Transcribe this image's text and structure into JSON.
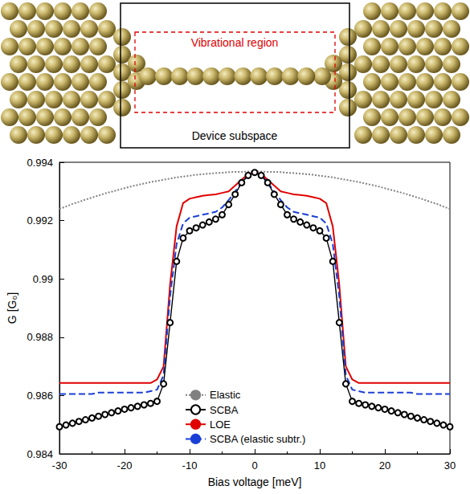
{
  "illustration": {
    "vibrational_region_label": "Vibrational region",
    "device_subspace_label": "Device subspace"
  },
  "chart_data": {
    "type": "line",
    "x_label": "Bias voltage [meV]",
    "y_label": "G [G₀]",
    "xlim": [
      -30,
      30
    ],
    "xticks": [
      -30,
      -20,
      -10,
      0,
      10,
      20,
      30
    ],
    "ylim": [
      0.984,
      0.994
    ],
    "yticks": [
      0.984,
      0.986,
      0.988,
      0.99,
      0.992,
      0.994
    ],
    "grid": false,
    "legend": "lower center",
    "x": [
      -30,
      -29,
      -28,
      -27,
      -26,
      -25,
      -24,
      -23,
      -22,
      -21,
      -20,
      -19,
      -18,
      -17,
      -16,
      -15,
      -14,
      -13,
      -12,
      -11,
      -10,
      -9,
      -8,
      -7,
      -6,
      -5,
      -4,
      -3,
      -2,
      -1,
      0,
      1,
      2,
      3,
      4,
      5,
      6,
      7,
      8,
      9,
      10,
      11,
      12,
      13,
      14,
      15,
      16,
      17,
      18,
      19,
      20,
      21,
      22,
      23,
      24,
      25,
      26,
      27,
      28,
      29,
      30
    ],
    "series": [
      {
        "name": "Elastic",
        "color": "#808080",
        "line_style": "dotted",
        "marker": "none",
        "values": [
          0.9924,
          0.99248,
          0.99257,
          0.99264,
          0.99272,
          0.99279,
          0.99286,
          0.99293,
          0.99299,
          0.99305,
          0.99311,
          0.99317,
          0.99322,
          0.99327,
          0.99332,
          0.99336,
          0.9934,
          0.99344,
          0.99348,
          0.99351,
          0.99354,
          0.99357,
          0.99359,
          0.99361,
          0.99363,
          0.99364,
          0.99366,
          0.99367,
          0.99367,
          0.99368,
          0.99368,
          0.99368,
          0.99367,
          0.99367,
          0.99366,
          0.99364,
          0.99363,
          0.99361,
          0.99359,
          0.99357,
          0.99354,
          0.99351,
          0.99348,
          0.99344,
          0.9934,
          0.99336,
          0.99332,
          0.99327,
          0.99322,
          0.99317,
          0.99311,
          0.99305,
          0.99299,
          0.99293,
          0.99286,
          0.99279,
          0.99272,
          0.99264,
          0.99257,
          0.99248,
          0.9924
        ]
      },
      {
        "name": "SCBA",
        "color": "#000000",
        "line_style": "solid",
        "marker": "open_circle",
        "values": [
          0.98493,
          0.98499,
          0.98505,
          0.98511,
          0.98517,
          0.98523,
          0.98529,
          0.98535,
          0.98541,
          0.98547,
          0.98553,
          0.98558,
          0.98563,
          0.98568,
          0.98573,
          0.9858,
          0.9864,
          0.9885,
          0.9906,
          0.9914,
          0.99165,
          0.99175,
          0.99185,
          0.99195,
          0.99205,
          0.9922,
          0.99255,
          0.9929,
          0.9933,
          0.99355,
          0.99365,
          0.99355,
          0.9933,
          0.9929,
          0.99255,
          0.9922,
          0.99205,
          0.99195,
          0.99185,
          0.99175,
          0.99165,
          0.9914,
          0.9906,
          0.9885,
          0.9864,
          0.9858,
          0.98573,
          0.98568,
          0.98563,
          0.98558,
          0.98553,
          0.98547,
          0.98541,
          0.98535,
          0.98529,
          0.98523,
          0.98517,
          0.98511,
          0.98505,
          0.98499,
          0.98493
        ]
      },
      {
        "name": "LOE",
        "color": "#e00000",
        "line_style": "solid",
        "marker": "none",
        "values": [
          0.98643,
          0.98643,
          0.98643,
          0.98643,
          0.98643,
          0.98643,
          0.98643,
          0.98643,
          0.98643,
          0.98643,
          0.98643,
          0.98643,
          0.98643,
          0.98643,
          0.98643,
          0.98655,
          0.987,
          0.9898,
          0.9918,
          0.9926,
          0.99275,
          0.9928,
          0.99285,
          0.99288,
          0.9929,
          0.99295,
          0.993,
          0.9932,
          0.9934,
          0.9936,
          0.99365,
          0.9936,
          0.9934,
          0.9932,
          0.993,
          0.99295,
          0.9929,
          0.99288,
          0.99285,
          0.9928,
          0.99275,
          0.9926,
          0.9918,
          0.9898,
          0.987,
          0.98655,
          0.98643,
          0.98643,
          0.98643,
          0.98643,
          0.98643,
          0.98643,
          0.98643,
          0.98643,
          0.98643,
          0.98643,
          0.98643,
          0.98643,
          0.98643,
          0.98643,
          0.98643
        ]
      },
      {
        "name": "SCBA (elastic subtr.)",
        "color": "#1a3fd6",
        "line_style": "dashed",
        "marker": "none",
        "values": [
          0.98605,
          0.98605,
          0.98605,
          0.98605,
          0.98605,
          0.98605,
          0.9861,
          0.9861,
          0.9861,
          0.9861,
          0.9861,
          0.9861,
          0.9861,
          0.9861,
          0.98615,
          0.9862,
          0.9867,
          0.9894,
          0.9912,
          0.9919,
          0.9921,
          0.99215,
          0.9922,
          0.99225,
          0.9923,
          0.99245,
          0.9927,
          0.993,
          0.9933,
          0.99355,
          0.99365,
          0.99355,
          0.9933,
          0.993,
          0.9927,
          0.99245,
          0.9923,
          0.99225,
          0.9922,
          0.99215,
          0.9921,
          0.9919,
          0.9912,
          0.9894,
          0.9867,
          0.9862,
          0.98615,
          0.9861,
          0.9861,
          0.9861,
          0.9861,
          0.9861,
          0.9861,
          0.9861,
          0.9861,
          0.98605,
          0.98605,
          0.98605,
          0.98605,
          0.98605,
          0.98605
        ]
      }
    ]
  }
}
